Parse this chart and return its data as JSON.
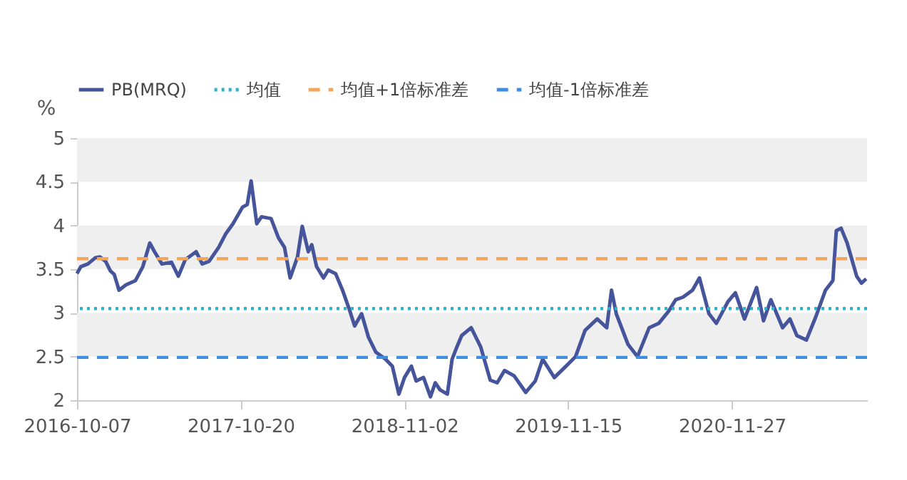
{
  "chart_data": {
    "type": "line",
    "ylabel": "%",
    "x": [
      "2016-10-07",
      "2016-10-16",
      "2016-11-01",
      "2016-11-18",
      "2016-11-29",
      "2016-12-12",
      "2016-12-23",
      "2017-01-01",
      "2017-01-12",
      "2017-01-28",
      "2017-02-19",
      "2017-03-08",
      "2017-03-24",
      "2017-04-04",
      "2017-04-21",
      "2017-05-13",
      "2017-05-29",
      "2017-06-14",
      "2017-07-09",
      "2017-07-23",
      "2017-08-08",
      "2017-08-30",
      "2017-09-16",
      "2017-10-02",
      "2017-10-24",
      "2017-11-04",
      "2017-11-13",
      "2017-11-26",
      "2017-12-07",
      "2017-12-29",
      "2018-01-15",
      "2018-01-29",
      "2018-02-11",
      "2018-02-28",
      "2018-03-11",
      "2018-03-25",
      "2018-04-02",
      "2018-04-13",
      "2018-04-29",
      "2018-05-10",
      "2018-05-27",
      "2018-06-12",
      "2018-06-29",
      "2018-07-10",
      "2018-07-26",
      "2018-08-11",
      "2018-08-28",
      "2018-09-19",
      "2018-10-05",
      "2018-10-20",
      "2018-11-02",
      "2018-11-18",
      "2018-11-29",
      "2018-12-16",
      "2019-01-01",
      "2019-01-12",
      "2019-01-23",
      "2019-02-09",
      "2019-02-20",
      "2019-03-03",
      "2019-03-14",
      "2019-04-05",
      "2019-04-27",
      "2019-05-19",
      "2019-06-04",
      "2019-06-21",
      "2019-07-13",
      "2019-08-09",
      "2019-08-31",
      "2019-09-17",
      "2019-10-14",
      "2019-11-10",
      "2019-12-02",
      "2019-12-24",
      "2020-01-21",
      "2020-02-12",
      "2020-02-23",
      "2020-03-05",
      "2020-04-01",
      "2020-04-23",
      "2020-05-20",
      "2020-06-11",
      "2020-07-04",
      "2020-07-20",
      "2020-08-06",
      "2020-08-28",
      "2020-09-13",
      "2020-10-05",
      "2020-10-22",
      "2020-11-18",
      "2020-12-05",
      "2020-12-26",
      "2021-01-23",
      "2021-02-08",
      "2021-02-25",
      "2021-03-24",
      "2021-04-10",
      "2021-04-26",
      "2021-05-18",
      "2021-06-09",
      "2021-07-01",
      "2021-07-18",
      "2021-07-26",
      "2021-08-06",
      "2021-08-20",
      "2021-08-31",
      "2021-09-11",
      "2021-09-22",
      "2021-10-03"
    ],
    "series": [
      {
        "name": "PB(MRQ)",
        "color": "#45549b",
        "values": [
          3.45,
          3.53,
          3.56,
          3.63,
          3.64,
          3.59,
          3.48,
          3.44,
          3.26,
          3.32,
          3.37,
          3.53,
          3.8,
          3.7,
          3.56,
          3.58,
          3.42,
          3.61,
          3.7,
          3.56,
          3.59,
          3.75,
          3.91,
          4.02,
          4.21,
          4.24,
          4.51,
          4.02,
          4.1,
          4.08,
          3.86,
          3.75,
          3.4,
          3.64,
          3.99,
          3.7,
          3.78,
          3.53,
          3.4,
          3.49,
          3.45,
          3.26,
          3.02,
          2.85,
          2.99,
          2.72,
          2.55,
          2.47,
          2.39,
          2.07,
          2.26,
          2.39,
          2.22,
          2.26,
          2.04,
          2.2,
          2.12,
          2.07,
          2.47,
          2.61,
          2.74,
          2.83,
          2.61,
          2.23,
          2.2,
          2.34,
          2.28,
          2.09,
          2.22,
          2.47,
          2.26,
          2.39,
          2.5,
          2.8,
          2.93,
          2.83,
          3.26,
          2.99,
          2.64,
          2.5,
          2.83,
          2.88,
          3.02,
          3.15,
          3.18,
          3.26,
          3.4,
          2.99,
          2.88,
          3.13,
          3.23,
          2.93,
          3.29,
          2.91,
          3.15,
          2.83,
          2.93,
          2.74,
          2.69,
          2.96,
          3.26,
          3.37,
          3.94,
          3.97,
          3.8,
          3.61,
          3.42,
          3.34,
          3.39
        ]
      }
    ],
    "ref_lines": [
      {
        "axis": "y",
        "value": 3.05,
        "label": "均值",
        "color": "#29b6c8",
        "line_style": "dotted"
      },
      {
        "axis": "y",
        "value": 3.62,
        "label": "均值+1倍标准差",
        "color": "#f5a55a",
        "line_style": "dashed"
      },
      {
        "axis": "y",
        "value": 2.49,
        "label": "均值-1倍标准差",
        "color": "#3d8ee0",
        "line_style": "dashed"
      }
    ],
    "bands": [
      {
        "axis": "y",
        "from": 4.5,
        "to": 5,
        "color": "#efefef"
      },
      {
        "axis": "y",
        "from": 3.5,
        "to": 4,
        "color": "#efefef"
      },
      {
        "axis": "y",
        "from": 2.5,
        "to": 3,
        "color": "#efefef"
      }
    ],
    "xlim": [
      "2016-10-07",
      "2021-10-05"
    ],
    "xticks": [
      "2016-10-07",
      "2017-10-20",
      "2018-11-02",
      "2019-11-15",
      "2020-11-27"
    ],
    "ylim": [
      2,
      5
    ],
    "yticks": [
      2,
      2.5,
      3,
      3.5,
      4,
      4.5,
      5
    ],
    "grid": false,
    "legend": "top",
    "line_style": "solid",
    "marker": "none"
  }
}
